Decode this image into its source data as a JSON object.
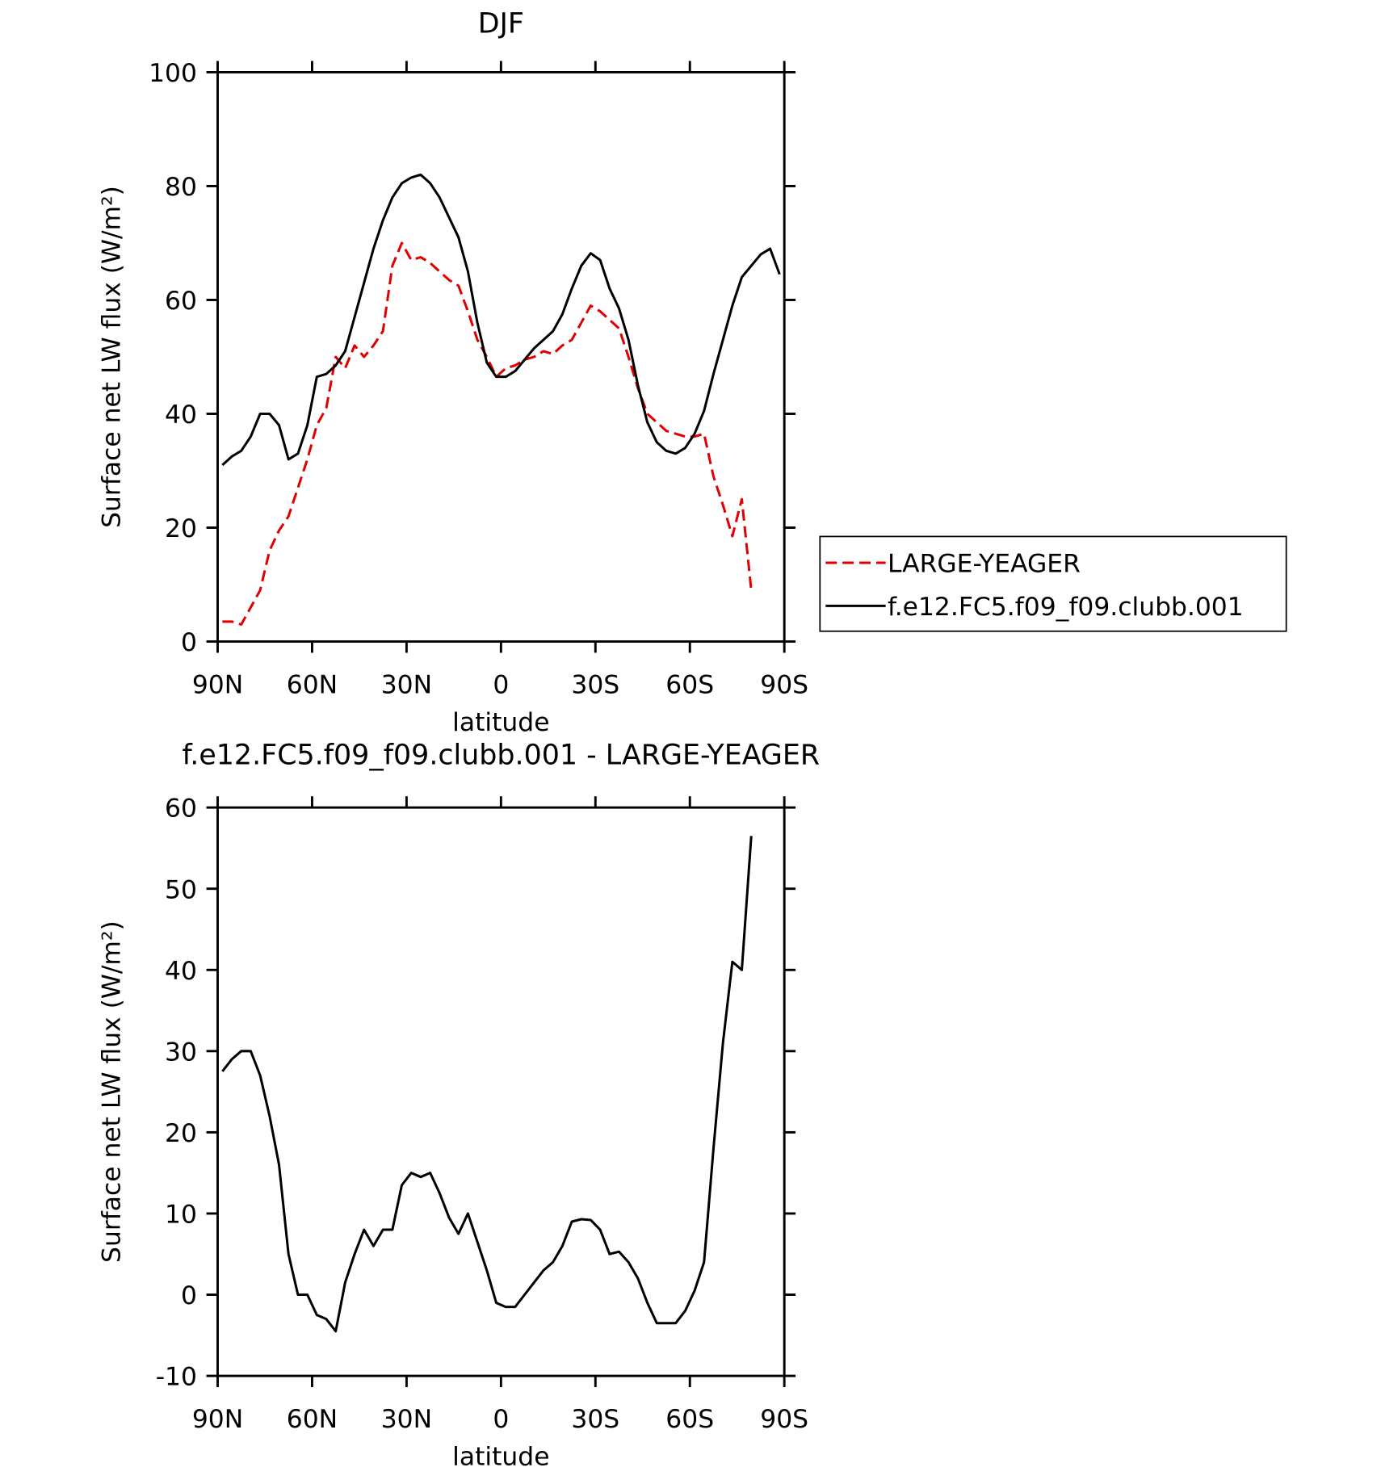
{
  "chart_data": [
    {
      "type": "line",
      "title": "DJF",
      "xlabel": "latitude",
      "ylabel": "Surface net LW flux (W/m²)",
      "x": [
        88.5,
        85.5,
        82.5,
        79.5,
        76.5,
        73.5,
        70.5,
        67.5,
        64.5,
        61.5,
        58.5,
        55.5,
        52.5,
        49.5,
        46.5,
        43.5,
        40.5,
        37.5,
        34.5,
        31.5,
        28.5,
        25.5,
        22.5,
        19.5,
        16.5,
        13.5,
        10.5,
        7.5,
        4.5,
        1.5,
        -1.5,
        -4.5,
        -7.5,
        -10.5,
        -13.5,
        -16.5,
        -19.5,
        -22.5,
        -25.5,
        -28.5,
        -31.5,
        -34.5,
        -37.5,
        -40.5,
        -43.5,
        -46.5,
        -49.5,
        -52.5,
        -55.5,
        -58.5,
        -61.5,
        -64.5,
        -67.5,
        -70.5,
        -73.5,
        -76.5,
        -79.5,
        -82.5,
        -85.5,
        -88.5
      ],
      "series": [
        {
          "name": "LARGE-YEAGER",
          "color": "#e00000",
          "dash": true,
          "values": [
            3.5,
            3.5,
            3,
            6,
            9,
            16,
            19.5,
            22,
            27,
            32,
            38,
            41,
            50,
            48,
            52,
            50,
            52,
            54.5,
            66,
            70,
            67,
            67.5,
            66.5,
            65,
            63.5,
            62.5,
            58,
            53,
            50,
            46.5,
            48,
            48.5,
            49.5,
            50,
            51,
            50.5,
            52,
            53,
            56,
            59,
            58,
            56.5,
            55,
            50,
            44.5,
            40,
            38.5,
            37,
            36.5,
            36,
            36,
            36.5,
            29,
            24,
            18.5,
            25,
            9,
            null,
            null,
            null
          ]
        },
        {
          "name": "f.e12.FC5.f09_f09.clubb.001",
          "color": "#000000",
          "dash": false,
          "values": [
            31,
            32.5,
            33.5,
            36,
            40,
            40,
            38,
            32,
            33,
            38,
            46.5,
            47,
            48.5,
            51,
            57,
            63,
            69,
            74,
            78,
            80.5,
            81.5,
            82,
            80.5,
            78,
            74.5,
            71,
            65,
            56,
            49,
            46.5,
            46.5,
            47.5,
            49.5,
            51.5,
            53,
            54.5,
            57.5,
            62,
            66,
            68.2,
            67,
            62,
            58.5,
            53,
            45,
            38.5,
            35,
            33.5,
            33,
            34,
            36.5,
            40.5,
            47,
            53,
            59,
            64,
            66,
            68,
            69,
            64.5
          ]
        }
      ],
      "xlim": [
        90,
        -90
      ],
      "xticks": [
        {
          "value": 90,
          "label": "90N"
        },
        {
          "value": 60,
          "label": "60N"
        },
        {
          "value": 30,
          "label": "30N"
        },
        0,
        {
          "value": -30,
          "label": "30S"
        },
        {
          "value": -60,
          "label": "60S"
        },
        {
          "value": -90,
          "label": "90S"
        }
      ],
      "ylim": [
        0,
        100
      ],
      "yticks": [
        0,
        20,
        40,
        60,
        80,
        100
      ],
      "grid": false,
      "legend": "right"
    },
    {
      "type": "line",
      "title": "f.e12.FC5.f09_f09.clubb.001 - LARGE-YEAGER",
      "xlabel": "latitude",
      "ylabel": "Surface net LW flux (W/m²)",
      "x": [
        88.5,
        85.5,
        82.5,
        79.5,
        76.5,
        73.5,
        70.5,
        67.5,
        64.5,
        61.5,
        58.5,
        55.5,
        52.5,
        49.5,
        46.5,
        43.5,
        40.5,
        37.5,
        34.5,
        31.5,
        28.5,
        25.5,
        22.5,
        19.5,
        16.5,
        13.5,
        10.5,
        7.5,
        4.5,
        1.5,
        -1.5,
        -4.5,
        -7.5,
        -10.5,
        -13.5,
        -16.5,
        -19.5,
        -22.5,
        -25.5,
        -28.5,
        -31.5,
        -34.5,
        -37.5,
        -40.5,
        -43.5,
        -46.5,
        -49.5,
        -52.5,
        -55.5,
        -58.5,
        -61.5,
        -64.5,
        -67.5,
        -70.5,
        -73.5,
        -76.5,
        -79.5,
        -82.5,
        -85.5,
        -88.5
      ],
      "series": [
        {
          "color": "#000000",
          "dash": false,
          "values": [
            27.5,
            29,
            30,
            30,
            27,
            22,
            16,
            5,
            0,
            0,
            -2.5,
            -3,
            -4.5,
            1.5,
            5,
            8,
            6,
            8,
            8,
            13.5,
            15,
            14.5,
            15,
            12.5,
            9.5,
            7.5,
            10,
            6.5,
            3,
            -1,
            -1.5,
            -1.5,
            0,
            1.5,
            3,
            4,
            6,
            9,
            9.3,
            9.2,
            8,
            5,
            5.3,
            4,
            2,
            -1,
            -3.5,
            -3.5,
            -3.5,
            -2,
            0.5,
            4,
            18,
            31,
            41,
            40,
            56.5,
            null,
            null,
            null
          ]
        }
      ],
      "xlim": [
        90,
        -90
      ],
      "xticks": [
        {
          "value": 90,
          "label": "90N"
        },
        {
          "value": 60,
          "label": "60N"
        },
        {
          "value": 30,
          "label": "30N"
        },
        0,
        {
          "value": -30,
          "label": "30S"
        },
        {
          "value": -60,
          "label": "60S"
        },
        {
          "value": -90,
          "label": "90S"
        }
      ],
      "ylim": [
        -10,
        60
      ],
      "yticks": [
        -10,
        0,
        10,
        20,
        30,
        40,
        50,
        60
      ],
      "grid": false
    }
  ]
}
